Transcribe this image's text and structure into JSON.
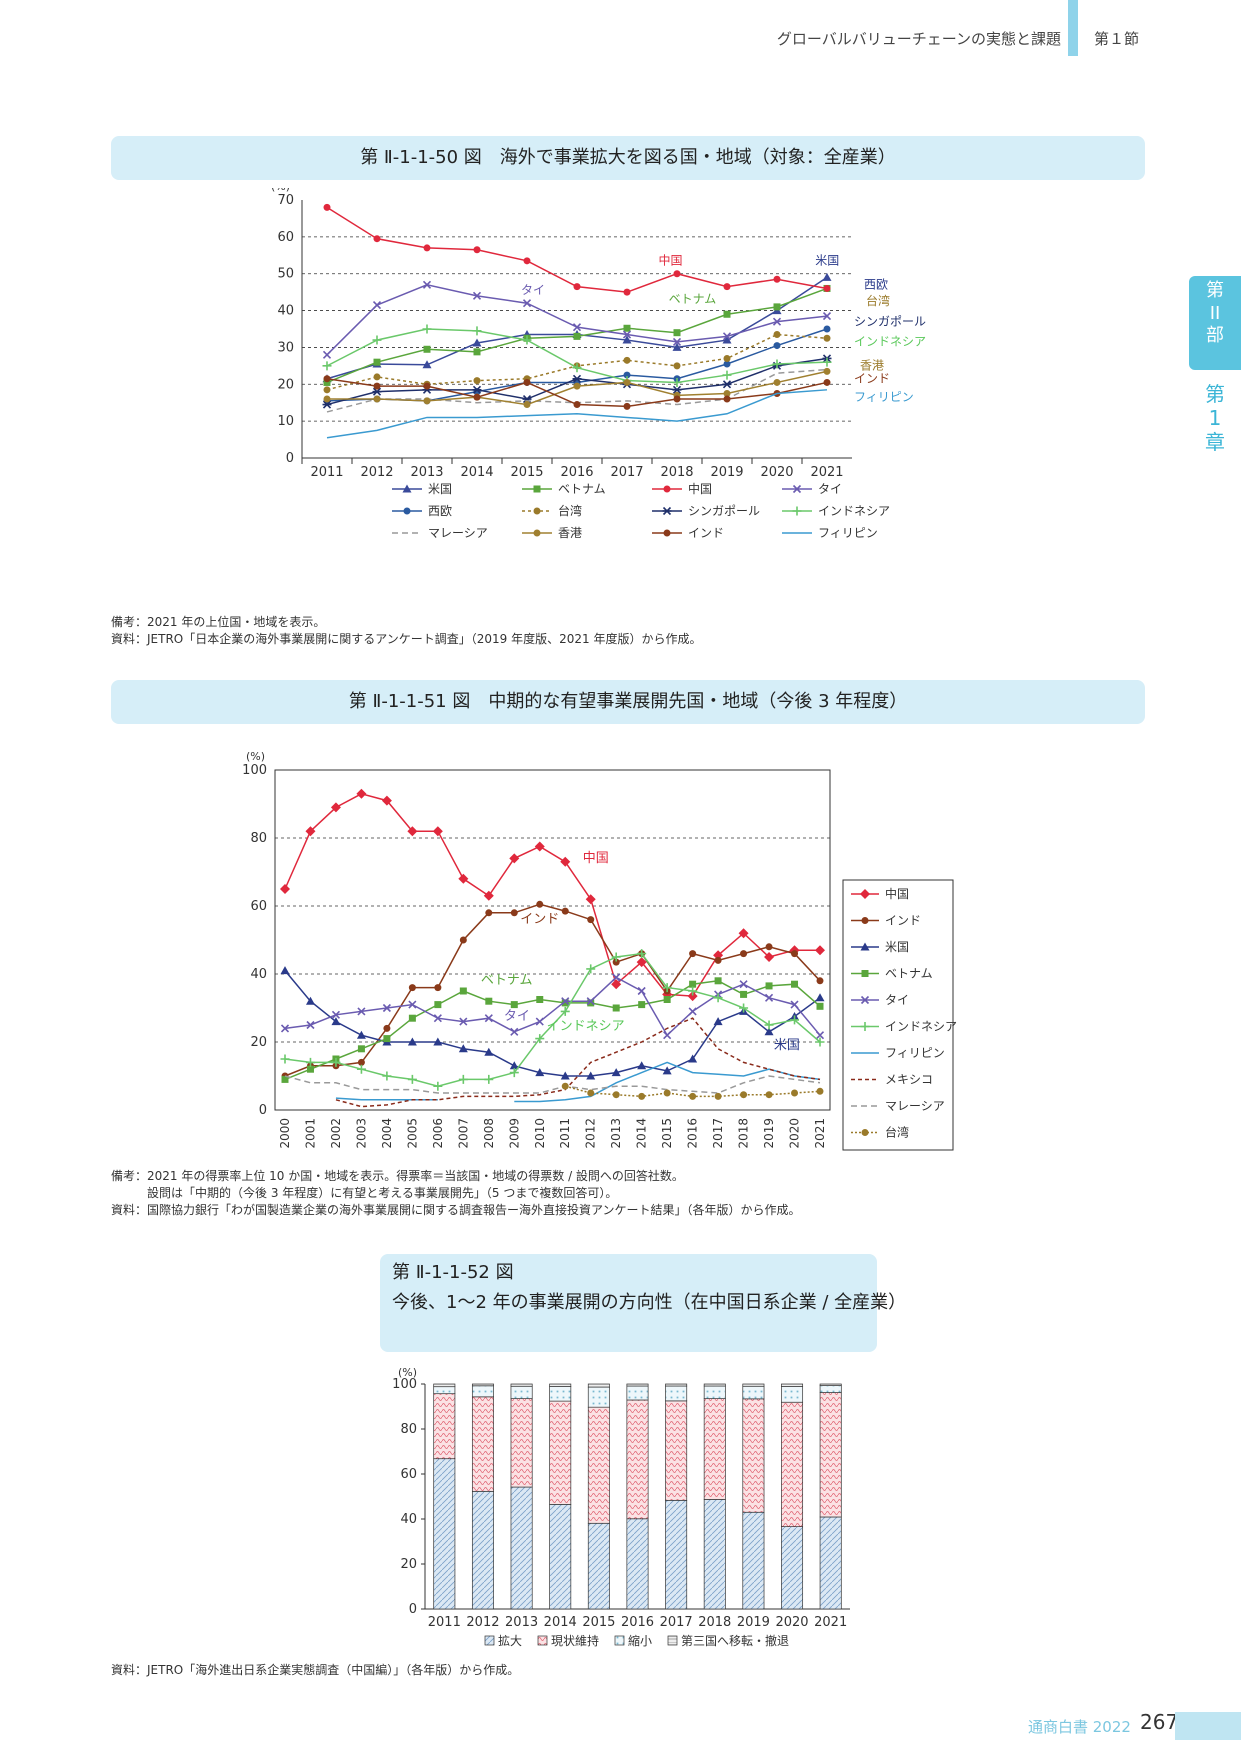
{
  "header": {
    "title": "グローバルバリューチェーンの実態と課題",
    "section": "第１節"
  },
  "side": {
    "part": "第\nII\n部",
    "chapter": "第\n1\n章"
  },
  "fig50": {
    "title": "第 Ⅱ-1-1-50 図　海外で事業拡大を図る国・地域（対象：全産業）",
    "unit": "(%)",
    "notes": "備考：2021 年の上位国・地域を表示。\n資料：JETRO「日本企業の海外事業展開に関するアンケート調査」（2019 年度版、2021 年度版）から作成。"
  },
  "fig51": {
    "title": "第 Ⅱ-1-1-51 図　中期的な有望事業展開先国・地域（今後 3 年程度）",
    "unit": "(%)",
    "notes": "備考：2021 年の得票率上位 10 か国・地域を表示。得票率＝当該国・地域の得票数 / 設問への回答社数。\n　　　設問は「中期的（今後 3 年程度）に有望と考える事業展開先」（5 つまで複数回答可）。\n資料：国際協力銀行「わが国製造業企業の海外事業展開に関する調査報告ー海外直接投資アンケート結果」（各年版）から作成。"
  },
  "fig52": {
    "title": "第 Ⅱ-1-1-52 図\n今後、1〜2 年の事業展開の方向性（在中国日系企業 / 全産業）",
    "unit": "(%)",
    "notes": "資料：JETRO「海外進出日系企業実態調査（中国編）」（各年版）から作成。"
  },
  "footer": {
    "book": "通商白書 2022",
    "page": "267"
  },
  "chart_data": [
    {
      "type": "line",
      "title": "海外で事業拡大を図る国・地域（対象：全産業）",
      "ylabel": "(%)",
      "ylim": [
        0,
        70
      ],
      "yticks": [
        0,
        10,
        20,
        30,
        40,
        50,
        60,
        70
      ],
      "x": [
        2011,
        2012,
        2013,
        2014,
        2015,
        2016,
        2017,
        2018,
        2019,
        2020,
        2021
      ],
      "series": [
        {
          "name": "米国",
          "color": "#3a4a9a",
          "marker": "tri",
          "values": [
            21.5,
            25.5,
            25.3,
            31.2,
            33.5,
            33.5,
            32,
            30,
            32,
            40,
            49
          ]
        },
        {
          "name": "ベトナム",
          "color": "#5aa63c",
          "marker": "sq",
          "values": [
            20.5,
            26,
            29.5,
            28.8,
            32.5,
            33,
            35.2,
            34,
            39,
            41,
            46
          ]
        },
        {
          "name": "中国",
          "color": "#e0283c",
          "marker": "dot",
          "values": [
            68,
            59.5,
            57,
            56.5,
            53.5,
            46.5,
            45,
            50,
            46.5,
            48.5,
            46
          ]
        },
        {
          "name": "タイ",
          "color": "#6a5bb0",
          "marker": "x",
          "values": [
            28,
            41.5,
            47,
            44,
            42,
            35.5,
            33.5,
            31.5,
            33,
            37,
            38.5
          ]
        },
        {
          "name": "西欧",
          "color": "#2a5aa0",
          "marker": "dot",
          "values": [
            15.5,
            16,
            15.5,
            18,
            20.5,
            20.5,
            22.5,
            21.5,
            25.5,
            30.5,
            35
          ]
        },
        {
          "name": "台湾",
          "color": "#9a7a2a",
          "marker": "dot",
          "dash": "3,3",
          "values": [
            18.5,
            22,
            20,
            21,
            21.5,
            25,
            26.5,
            25,
            27,
            33.5,
            32.5
          ]
        },
        {
          "name": "シンガポール",
          "color": "#1f2f6a",
          "marker": "star",
          "values": [
            14.5,
            18,
            18.5,
            18.5,
            16,
            21.5,
            20,
            18.5,
            20,
            25,
            27
          ]
        },
        {
          "name": "インドネシア",
          "color": "#6ac86a",
          "marker": "plus",
          "values": [
            25,
            32,
            35,
            34.5,
            32,
            24.5,
            21,
            20.5,
            22.5,
            25.5,
            26
          ]
        },
        {
          "name": "マレーシア",
          "color": "#999999",
          "dash": "6,4",
          "values": [
            12.5,
            16,
            16,
            15,
            15.5,
            15,
            15.5,
            14.5,
            16,
            23,
            24
          ]
        },
        {
          "name": "香港",
          "color": "#a08030",
          "marker": "dot",
          "values": [
            16,
            16,
            15.5,
            16.5,
            14.5,
            19.5,
            20.5,
            17,
            17.5,
            20.5,
            23.5
          ]
        },
        {
          "name": "インド",
          "color": "#8a3a1a",
          "marker": "dot",
          "values": [
            21.5,
            19.5,
            19.5,
            16.5,
            20.5,
            14.5,
            14,
            16,
            16,
            17.5,
            20.5
          ]
        },
        {
          "name": "フィリピン",
          "color": "#3a9ad0",
          "values": [
            5.5,
            7.5,
            11,
            11,
            11.5,
            12,
            11,
            10,
            12,
            17.5,
            18.5
          ]
        }
      ],
      "annotations": [
        "中国",
        "米国",
        "タイ",
        "ベトナム",
        "西欧",
        "台湾",
        "シンガポール",
        "インドネシア",
        "香港",
        "インド",
        "フィリピン"
      ]
    },
    {
      "type": "line",
      "title": "中期的な有望事業展開先国・地域（今後 3 年程度）",
      "ylabel": "(%)",
      "ylim": [
        0,
        100
      ],
      "yticks": [
        0,
        20,
        40,
        60,
        80,
        100
      ],
      "x": [
        2000,
        2001,
        2002,
        2003,
        2004,
        2005,
        2006,
        2007,
        2008,
        2009,
        2010,
        2011,
        2012,
        2013,
        2014,
        2015,
        2016,
        2017,
        2018,
        2019,
        2020,
        2021
      ],
      "series": [
        {
          "name": "中国",
          "color": "#e0283c",
          "marker": "diamond",
          "values": [
            65,
            82,
            89,
            93,
            91,
            82,
            82,
            68,
            63,
            74,
            77.5,
            73,
            62,
            37,
            43.5,
            34,
            33.5,
            45.5,
            52,
            45,
            47,
            47
          ]
        },
        {
          "name": "インド",
          "color": "#8a3a1a",
          "marker": "dot",
          "values": [
            10,
            13,
            13,
            14,
            24,
            36,
            36,
            50,
            58,
            58,
            60.5,
            58.5,
            56,
            43.5,
            46,
            35,
            46,
            44,
            46,
            48,
            46,
            38
          ]
        },
        {
          "name": "米国",
          "color": "#2a3a8a",
          "marker": "tri",
          "values": [
            41,
            32,
            26,
            22,
            20,
            20,
            20,
            18,
            17,
            13,
            11,
            10,
            10,
            11,
            13,
            11.5,
            15,
            26,
            29,
            23,
            27.5,
            33
          ]
        },
        {
          "name": "ベトナム",
          "color": "#5aa63c",
          "marker": "sq",
          "values": [
            9,
            12,
            15,
            18,
            21,
            27,
            31,
            35,
            32,
            31,
            32.5,
            31.5,
            31.5,
            30,
            31,
            32.5,
            37,
            38,
            34,
            36.5,
            37,
            30.5
          ]
        },
        {
          "name": "タイ",
          "color": "#6a5bb0",
          "marker": "x",
          "values": [
            24,
            25,
            28,
            29,
            30,
            31,
            27,
            26,
            27,
            23,
            26,
            32,
            32,
            39,
            35,
            22,
            29,
            34,
            37,
            33,
            31,
            22
          ]
        },
        {
          "name": "インドネシア",
          "color": "#6ac86a",
          "marker": "plus",
          "values": [
            15,
            14,
            14,
            12,
            10,
            9,
            7,
            9,
            9,
            11,
            21,
            29,
            41.5,
            45,
            46,
            36,
            35,
            33,
            30,
            25,
            26.5,
            20
          ]
        },
        {
          "name": "フィリピン",
          "color": "#3a9ad0",
          "values": [
            null,
            null,
            3.5,
            3,
            3,
            3,
            3,
            null,
            null,
            2.5,
            2.5,
            3,
            4,
            8,
            11,
            14,
            11,
            10.5,
            10,
            12,
            10,
            9
          ]
        },
        {
          "name": "メキシコ",
          "color": "#8a2a1a",
          "dash": "4,3",
          "values": [
            null,
            null,
            3,
            1,
            1.5,
            3,
            3,
            4,
            4,
            4,
            4.5,
            6,
            14,
            17,
            20,
            24,
            27,
            18,
            14,
            12,
            10,
            9
          ]
        },
        {
          "name": "マレーシア",
          "color": "#999999",
          "dash": "6,4",
          "values": [
            10,
            8,
            8,
            6,
            6,
            6,
            5,
            5,
            5,
            5,
            5,
            7,
            6,
            7,
            7,
            6,
            5.5,
            5,
            8,
            10,
            9,
            8
          ]
        },
        {
          "name": "台湾",
          "color": "#9a7a2a",
          "marker": "dot",
          "dash": "2,2",
          "values": [
            null,
            null,
            null,
            null,
            null,
            null,
            null,
            null,
            null,
            null,
            null,
            7,
            5,
            4.5,
            4,
            5,
            4,
            4,
            4.5,
            4.5,
            5,
            5.5
          ]
        }
      ],
      "annotations": [
        "中国",
        "インド",
        "ベトナム",
        "タイ",
        "インドネシア",
        "米国"
      ]
    },
    {
      "type": "bar",
      "stacked": true,
      "title": "今後、1〜2 年の事業展開の方向性（在中国日系企業 / 全産業）",
      "ylabel": "(%)",
      "ylim": [
        0,
        100
      ],
      "yticks": [
        0,
        20,
        40,
        60,
        80,
        100
      ],
      "categories": [
        "2011",
        "2012",
        "2013",
        "2014",
        "2015",
        "2016",
        "2017",
        "2018",
        "2019",
        "2020",
        "2021"
      ],
      "series": [
        {
          "name": "拡大",
          "color": "#bcd6ea",
          "values": [
            66.8,
            52.3,
            54.2,
            46.5,
            38.1,
            40.1,
            48.3,
            48.7,
            43,
            36.6,
            40.9
          ]
        },
        {
          "name": "現状維持",
          "color": "#f8d8d8",
          "values": [
            28.9,
            42,
            39.3,
            45.9,
            51.6,
            52.8,
            44.2,
            44.8,
            50.4,
            55.3,
            55.3
          ]
        },
        {
          "name": "縮小",
          "color": "#e8f3f8",
          "values": [
            3.1,
            4.9,
            5.5,
            6.5,
            8.9,
            6.2,
            6.6,
            5.6,
            5.6,
            7,
            3.1
          ]
        },
        {
          "name": "第三国へ移転・撤退",
          "color": "#d8d8d8",
          "values": [
            1.2,
            0.8,
            1,
            1.1,
            1.4,
            0.9,
            0.9,
            0.9,
            1,
            1.1,
            0.7
          ]
        }
      ]
    }
  ]
}
